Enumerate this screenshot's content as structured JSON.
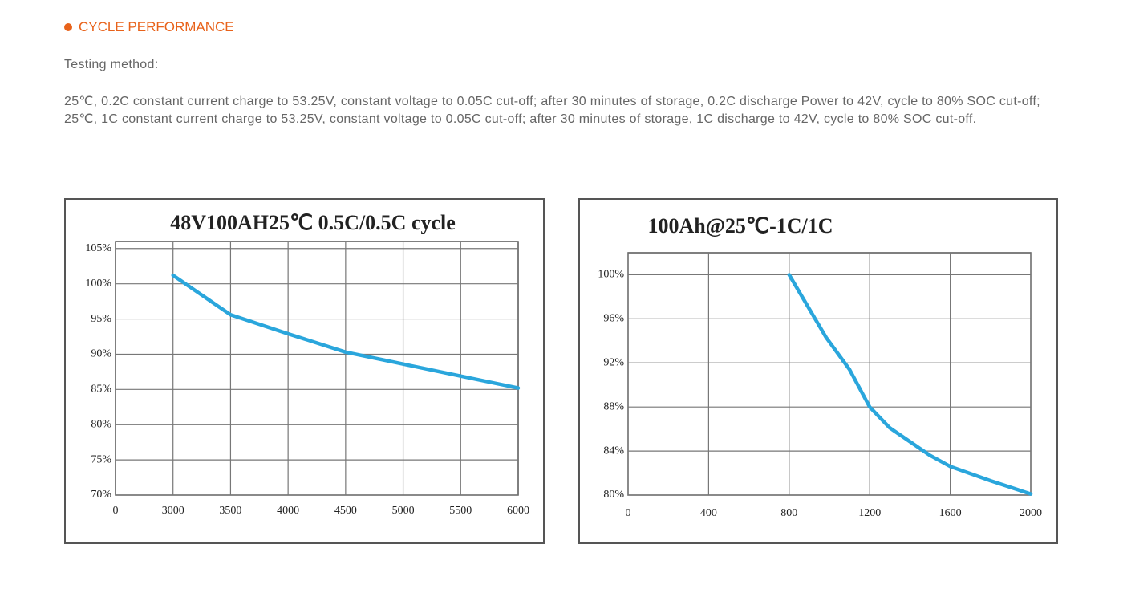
{
  "header": {
    "title": "CYCLE PERFORMANCE",
    "subtitle": "Testing method:",
    "paragraphs": [
      "25℃, 0.2C constant current charge to 53.25V, constant voltage to 0.05C cut-off; after 30 minutes of storage, 0.2C discharge Power to 42V, cycle to 80% SOC cut-off;",
      "25℃, 1C constant current charge to 53.25V, constant voltage to 0.05C cut-off; after 30 minutes of storage, 1C discharge to 42V, cycle to 80% SOC cut-off."
    ]
  },
  "chart_data": [
    {
      "type": "line",
      "title": "48V100AH25℃ 0.5C/0.5C cycle",
      "categories": [
        "0",
        "3000",
        "3500",
        "4000",
        "4500",
        "5000",
        "5500",
        "6000"
      ],
      "values": [
        null,
        101.2,
        95.6,
        92.9,
        90.3,
        88.6,
        86.9,
        85.2
      ],
      "color": "#2aa6dc",
      "ylim": [
        70,
        106
      ],
      "yticks": [
        {
          "value": 70,
          "label": "70%"
        },
        {
          "value": 75,
          "label": "75%"
        },
        {
          "value": 80,
          "label": "80%"
        },
        {
          "value": 85,
          "label": "85%"
        },
        {
          "value": 90,
          "label": "90%"
        },
        {
          "value": 95,
          "label": "95%"
        },
        {
          "value": 100,
          "label": "100%"
        },
        {
          "value": 105,
          "label": "105%"
        }
      ],
      "grid": true
    },
    {
      "type": "line",
      "title": "100Ah@25℃-1C/1C",
      "x": [
        800,
        984,
        1100,
        1200,
        1300,
        1500,
        1600,
        1800,
        2000
      ],
      "values": [
        100,
        94.3,
        91.4,
        88.0,
        86.1,
        83.6,
        82.6,
        81.3,
        80.1
      ],
      "color": "#2aa6dc",
      "xlim": [
        0,
        2000
      ],
      "xticks": [
        0,
        400,
        800,
        1200,
        1600,
        2000
      ],
      "ylim": [
        80,
        102
      ],
      "yticks": [
        {
          "value": 80,
          "label": "80%"
        },
        {
          "value": 84,
          "label": "84%"
        },
        {
          "value": 88,
          "label": "88%"
        },
        {
          "value": 92,
          "label": "92%"
        },
        {
          "value": 96,
          "label": "96%"
        },
        {
          "value": 100,
          "label": "100%"
        }
      ],
      "grid": true
    }
  ]
}
